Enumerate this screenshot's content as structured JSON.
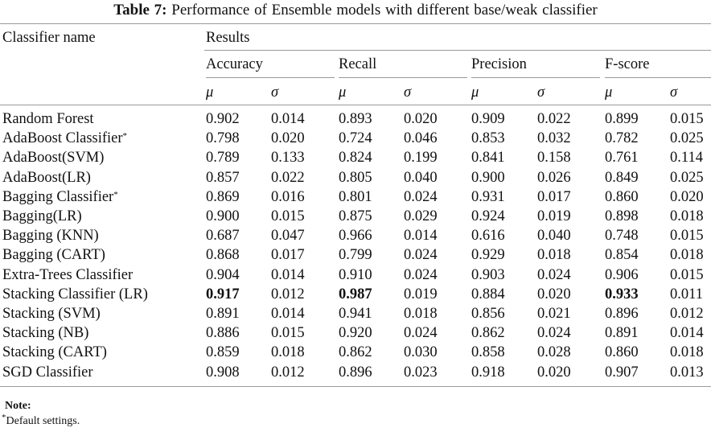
{
  "caption": {
    "label": "Table 7:",
    "text": "Performance of Ensemble models with different base/weak classifier"
  },
  "header": {
    "classifier": "Classifier name",
    "results": "Results",
    "groups": [
      "Accuracy",
      "Recall",
      "Precision",
      "F-score"
    ],
    "mu": "μ",
    "sigma": "σ"
  },
  "rows": [
    {
      "name": "Random Forest",
      "sup": "",
      "values": [
        "0.902",
        "0.014",
        "0.893",
        "0.020",
        "0.909",
        "0.022",
        "0.899",
        "0.015"
      ],
      "bold": []
    },
    {
      "name": "AdaBoost Classifier",
      "sup": "*",
      "values": [
        "0.798",
        "0.020",
        "0.724",
        "0.046",
        "0.853",
        "0.032",
        "0.782",
        "0.025"
      ],
      "bold": []
    },
    {
      "name": "AdaBoost(SVM)",
      "sup": "",
      "values": [
        "0.789",
        "0.133",
        "0.824",
        "0.199",
        "0.841",
        "0.158",
        "0.761",
        "0.114"
      ],
      "bold": []
    },
    {
      "name": "AdaBoost(LR)",
      "sup": "",
      "values": [
        "0.857",
        "0.022",
        "0.805",
        "0.040",
        "0.900",
        "0.026",
        "0.849",
        "0.025"
      ],
      "bold": []
    },
    {
      "name": "Bagging Classifier",
      "sup": "*",
      "values": [
        "0.869",
        "0.016",
        "0.801",
        "0.024",
        "0.931",
        "0.017",
        "0.860",
        "0.020"
      ],
      "bold": []
    },
    {
      "name": "Bagging(LR)",
      "sup": "",
      "values": [
        "0.900",
        "0.015",
        "0.875",
        "0.029",
        "0.924",
        "0.019",
        "0.898",
        "0.018"
      ],
      "bold": []
    },
    {
      "name": "Bagging (KNN)",
      "sup": "",
      "values": [
        "0.687",
        "0.047",
        "0.966",
        "0.014",
        "0.616",
        "0.040",
        "0.748",
        "0.015"
      ],
      "bold": []
    },
    {
      "name": "Bagging (CART)",
      "sup": "",
      "values": [
        "0.868",
        "0.017",
        "0.799",
        "0.024",
        "0.929",
        "0.018",
        "0.854",
        "0.018"
      ],
      "bold": []
    },
    {
      "name": "Extra-Trees Classifier",
      "sup": "",
      "values": [
        "0.904",
        "0.014",
        "0.910",
        "0.024",
        "0.903",
        "0.024",
        "0.906",
        "0.015"
      ],
      "bold": []
    },
    {
      "name": "Stacking Classifier (LR)",
      "sup": "",
      "values": [
        "0.917",
        "0.012",
        "0.987",
        "0.019",
        "0.884",
        "0.020",
        "0.933",
        "0.011"
      ],
      "bold": [
        0,
        2,
        6
      ]
    },
    {
      "name": "Stacking (SVM)",
      "sup": "",
      "values": [
        "0.891",
        "0.014",
        "0.941",
        "0.018",
        "0.856",
        "0.021",
        "0.896",
        "0.012"
      ],
      "bold": []
    },
    {
      "name": "Stacking (NB)",
      "sup": "",
      "values": [
        "0.886",
        "0.015",
        "0.920",
        "0.024",
        "0.862",
        "0.024",
        "0.891",
        "0.014"
      ],
      "bold": []
    },
    {
      "name": "Stacking (CART)",
      "sup": "",
      "values": [
        "0.859",
        "0.018",
        "0.862",
        "0.030",
        "0.858",
        "0.028",
        "0.860",
        "0.018"
      ],
      "bold": []
    },
    {
      "name": "SGD Classifier",
      "sup": "",
      "values": [
        "0.908",
        "0.012",
        "0.896",
        "0.023",
        "0.918",
        "0.020",
        "0.907",
        "0.013"
      ],
      "bold": []
    }
  ],
  "note": {
    "title": "Note:",
    "sup": "*",
    "text": "Default settings."
  }
}
